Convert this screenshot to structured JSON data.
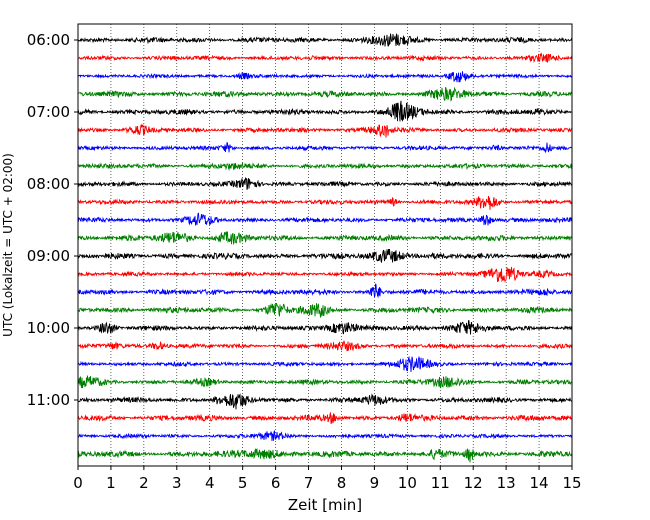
{
  "chart_data": {
    "type": "line",
    "title": "",
    "xlabel": "Zeit  [min]",
    "ylabel": "UTC (Lokalzeit = UTC + 02:00)",
    "xlim": [
      0,
      15
    ],
    "x_ticks": [
      0,
      1,
      2,
      3,
      4,
      5,
      6,
      7,
      8,
      9,
      10,
      11,
      12,
      13,
      14,
      15
    ],
    "y_tick_labels": [
      "06:00",
      "07:00",
      "08:00",
      "09:00",
      "10:00",
      "11:00"
    ],
    "y_tick_rows": [
      0,
      4,
      8,
      12,
      16,
      20
    ],
    "trace_count": 24,
    "trace_colors": [
      "#000000",
      "#ff0000",
      "#0000ff",
      "#008000"
    ],
    "grid": "vertical-dotted",
    "legend": "none"
  }
}
